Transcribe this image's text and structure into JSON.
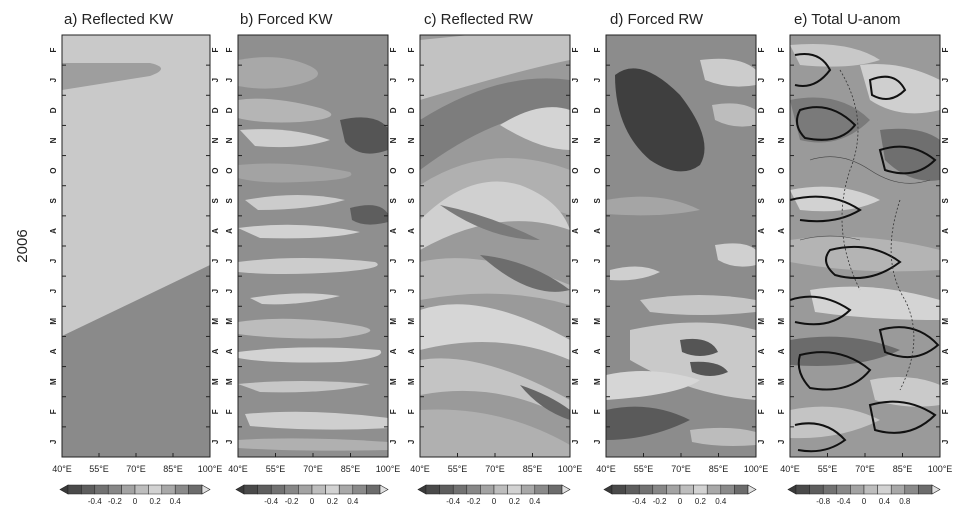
{
  "figure": {
    "year_label": "2006"
  },
  "chart_data": [
    {
      "type": "heatmap",
      "title": "a) Reflected KW",
      "xticks": [
        "40°E",
        "55°E",
        "70°E",
        "85°E",
        "100°E"
      ],
      "months": [
        "J",
        "F",
        "M",
        "A",
        "M",
        "J",
        "J",
        "A",
        "S",
        "O",
        "N",
        "D",
        "J",
        "F"
      ],
      "colorbar": [
        "-0.4",
        "-0.2",
        "0",
        "0.2",
        "0.4"
      ]
    },
    {
      "type": "heatmap",
      "title": "b) Forced KW",
      "xticks": [
        "40°E",
        "55°E",
        "70°E",
        "85°E",
        "100°E"
      ],
      "months": [
        "J",
        "F",
        "M",
        "A",
        "M",
        "J",
        "J",
        "A",
        "S",
        "O",
        "N",
        "D",
        "J",
        "F"
      ],
      "colorbar": [
        "-0.4",
        "-0.2",
        "0",
        "0.2",
        "0.4"
      ]
    },
    {
      "type": "heatmap",
      "title": "c) Reflected RW",
      "xticks": [
        "40°E",
        "55°E",
        "70°E",
        "85°E",
        "100°E"
      ],
      "months": [
        "J",
        "F",
        "M",
        "A",
        "M",
        "J",
        "J",
        "A",
        "S",
        "O",
        "N",
        "D",
        "J",
        "F"
      ],
      "colorbar": [
        "-0.4",
        "-0.2",
        "0",
        "0.2",
        "0.4"
      ]
    },
    {
      "type": "heatmap",
      "title": "d) Forced RW",
      "xticks": [
        "40°E",
        "55°E",
        "70°E",
        "85°E",
        "100°E"
      ],
      "months": [
        "J",
        "F",
        "M",
        "A",
        "M",
        "J",
        "J",
        "A",
        "S",
        "O",
        "N",
        "D",
        "J",
        "F"
      ],
      "colorbar": [
        "-0.4",
        "-0.2",
        "0",
        "0.2",
        "0.4"
      ]
    },
    {
      "type": "heatmap",
      "title": "e) Total U-anom",
      "xticks": [
        "40°E",
        "55°E",
        "70°E",
        "85°E",
        "100°E"
      ],
      "months": [
        "J",
        "F",
        "M",
        "A",
        "M",
        "J",
        "J",
        "A",
        "S",
        "O",
        "N",
        "D",
        "J",
        "F"
      ],
      "colorbar": [
        "-0.8",
        "-0.4",
        "0",
        "0.4",
        "0.8"
      ]
    }
  ]
}
